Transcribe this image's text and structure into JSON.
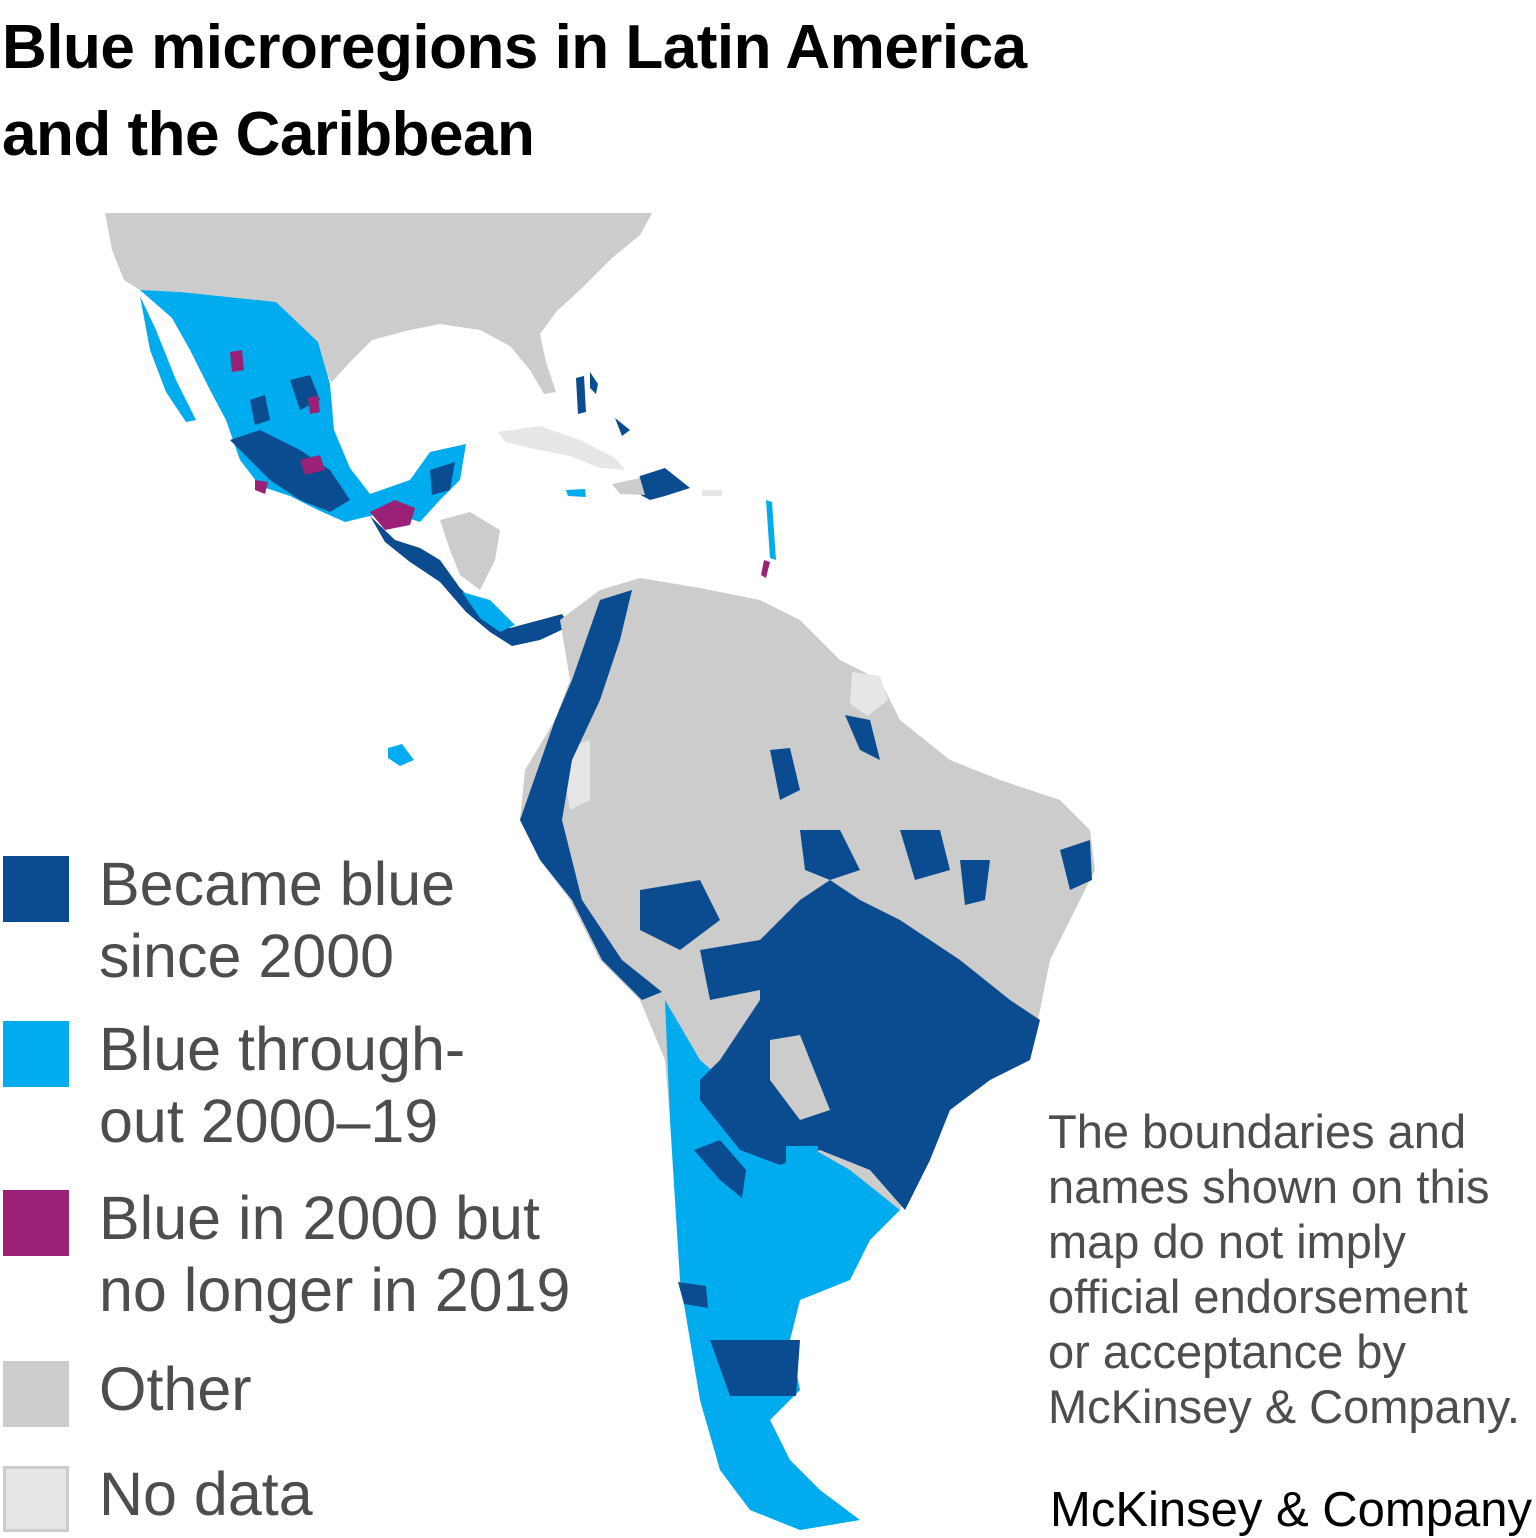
{
  "title": {
    "line1": "Blue microregions in Latin America",
    "line2": "and the Caribbean"
  },
  "legend": [
    {
      "lines": [
        "Became blue",
        "since 2000"
      ],
      "color": "#0a4c8f"
    },
    {
      "lines": [
        "Blue through-",
        "out 2000–19"
      ],
      "color": "#00acee"
    },
    {
      "lines": [
        "Blue in 2000 but",
        "no longer in 2019"
      ],
      "color": "#9b2177"
    },
    {
      "lines": [
        "Other"
      ],
      "color": "#cccccc"
    },
    {
      "lines": [
        "No data"
      ],
      "color": "#e6e6e6"
    }
  ],
  "disclaimer": [
    "The boundaries and",
    "names shown on this",
    "map do not imply",
    "official endorsement",
    "or acceptance by",
    "McKinsey & Company."
  ],
  "logo": "McKinsey & Company"
}
